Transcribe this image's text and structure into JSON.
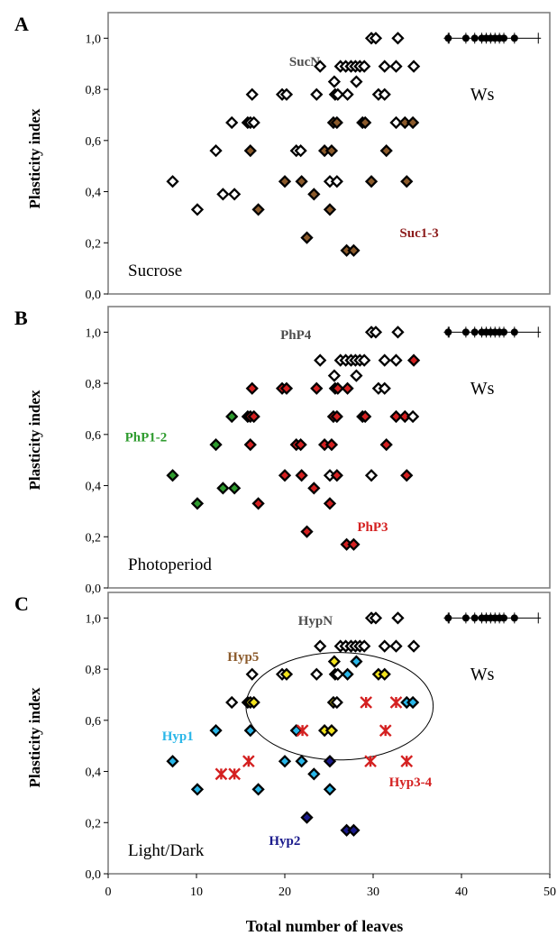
{
  "figure": {
    "xlabel": "Total number of leaves",
    "ylabel": "Plasticity index",
    "xlim": [
      0,
      50
    ],
    "ylim": [
      0,
      1.1
    ],
    "x_ticks": [
      "0",
      "10",
      "20",
      "30",
      "40",
      "50"
    ],
    "y_ticks": [
      "0,0",
      "0,2",
      "0,4",
      "0,6",
      "0,8",
      "1,0"
    ],
    "y_tick_values": [
      0,
      0.2,
      0.4,
      0.6,
      0.8,
      1.0
    ]
  },
  "colors": {
    "white": "#ffffff",
    "brown": "#8b5a2b",
    "red": "#d42020",
    "green": "#2e9b2e",
    "cyan": "#29b6e8",
    "yellow": "#f2e21d",
    "navy": "#1a1a8c",
    "black": "#000000"
  },
  "chart_data": [
    {
      "type": "scatter",
      "panel_letter": "A",
      "condition_label": "Sucrose",
      "ws_label": "Ws",
      "group_labels": [
        {
          "text": "SucN",
          "color": "#4d4d4d",
          "at": [
            20.5,
            0.91
          ]
        },
        {
          "text": "Suc1-3",
          "color": "#8b1a1a",
          "at": [
            33,
            0.24
          ]
        }
      ],
      "points": [
        {
          "x": 7.3,
          "y": 0.44,
          "c": "white"
        },
        {
          "x": 10.1,
          "y": 0.33,
          "c": "white"
        },
        {
          "x": 12.2,
          "y": 0.56,
          "c": "white"
        },
        {
          "x": 13,
          "y": 0.39,
          "c": "white"
        },
        {
          "x": 14.3,
          "y": 0.39,
          "c": "white"
        },
        {
          "x": 14,
          "y": 0.67,
          "c": "white"
        },
        {
          "x": 15.8,
          "y": 0.67,
          "c": "white"
        },
        {
          "x": 16.1,
          "y": 0.67,
          "c": "white"
        },
        {
          "x": 16.5,
          "y": 0.67,
          "c": "white"
        },
        {
          "x": 16.3,
          "y": 0.78,
          "c": "white"
        },
        {
          "x": 16.1,
          "y": 0.56,
          "c": "brown"
        },
        {
          "x": 17,
          "y": 0.33,
          "c": "brown"
        },
        {
          "x": 19.7,
          "y": 0.78,
          "c": "white"
        },
        {
          "x": 20.2,
          "y": 0.78,
          "c": "white"
        },
        {
          "x": 20,
          "y": 0.44,
          "c": "brown"
        },
        {
          "x": 21.3,
          "y": 0.56,
          "c": "white"
        },
        {
          "x": 21.8,
          "y": 0.56,
          "c": "white"
        },
        {
          "x": 21.9,
          "y": 0.44,
          "c": "brown"
        },
        {
          "x": 22.5,
          "y": 0.22,
          "c": "brown"
        },
        {
          "x": 23.3,
          "y": 0.39,
          "c": "brown"
        },
        {
          "x": 23.6,
          "y": 0.78,
          "c": "white"
        },
        {
          "x": 24,
          "y": 0.89,
          "c": "white"
        },
        {
          "x": 24.5,
          "y": 0.56,
          "c": "brown"
        },
        {
          "x": 25.1,
          "y": 0.33,
          "c": "brown"
        },
        {
          "x": 25.1,
          "y": 0.44,
          "c": "white"
        },
        {
          "x": 25.3,
          "y": 0.56,
          "c": "brown"
        },
        {
          "x": 25.5,
          "y": 0.67,
          "c": "brown"
        },
        {
          "x": 25.7,
          "y": 0.78,
          "c": "white"
        },
        {
          "x": 26,
          "y": 0.78,
          "c": "white"
        },
        {
          "x": 25.6,
          "y": 0.83,
          "c": "white"
        },
        {
          "x": 25.9,
          "y": 0.67,
          "c": "brown"
        },
        {
          "x": 26.3,
          "y": 0.89,
          "c": "white"
        },
        {
          "x": 25.9,
          "y": 0.44,
          "c": "white"
        },
        {
          "x": 26.9,
          "y": 0.89,
          "c": "white"
        },
        {
          "x": 27,
          "y": 0.17,
          "c": "brown"
        },
        {
          "x": 27.1,
          "y": 0.78,
          "c": "white"
        },
        {
          "x": 27.5,
          "y": 0.89,
          "c": "white"
        },
        {
          "x": 28,
          "y": 0.89,
          "c": "white"
        },
        {
          "x": 27.8,
          "y": 0.17,
          "c": "brown"
        },
        {
          "x": 28.1,
          "y": 0.83,
          "c": "white"
        },
        {
          "x": 28.5,
          "y": 0.89,
          "c": "white"
        },
        {
          "x": 28.8,
          "y": 0.67,
          "c": "white"
        },
        {
          "x": 29,
          "y": 0.89,
          "c": "white"
        },
        {
          "x": 29.1,
          "y": 0.67,
          "c": "brown"
        },
        {
          "x": 29.8,
          "y": 0.44,
          "c": "brown"
        },
        {
          "x": 29.8,
          "y": 1.0,
          "c": "white"
        },
        {
          "x": 30.3,
          "y": 1.0,
          "c": "white"
        },
        {
          "x": 30.6,
          "y": 0.78,
          "c": "white"
        },
        {
          "x": 31.3,
          "y": 0.78,
          "c": "white"
        },
        {
          "x": 31.5,
          "y": 0.56,
          "c": "brown"
        },
        {
          "x": 31.3,
          "y": 0.89,
          "c": "white"
        },
        {
          "x": 32.6,
          "y": 0.89,
          "c": "white"
        },
        {
          "x": 32.8,
          "y": 1.0,
          "c": "white"
        },
        {
          "x": 32.6,
          "y": 0.67,
          "c": "white"
        },
        {
          "x": 33.6,
          "y": 0.67,
          "c": "brown"
        },
        {
          "x": 33.8,
          "y": 0.44,
          "c": "brown"
        },
        {
          "x": 34.5,
          "y": 0.67,
          "c": "brown"
        },
        {
          "x": 34.6,
          "y": 0.89,
          "c": "white"
        }
      ],
      "ws_points_x": [
        38.5,
        40.5,
        41.5,
        42.3,
        42.8,
        43.3,
        43.8,
        44.3,
        44.8,
        46
      ],
      "ws_points_y": 1.0,
      "ws_whisker": [
        38,
        49
      ]
    },
    {
      "type": "scatter",
      "panel_letter": "B",
      "condition_label": "Photoperiod",
      "ws_label": "Ws",
      "group_labels": [
        {
          "text": "PhP4",
          "color": "#4d4d4d",
          "at": [
            19.5,
            0.99
          ]
        },
        {
          "text": "PhP1-2",
          "color": "#2e9b2e",
          "at": [
            1.9,
            0.59
          ]
        },
        {
          "text": "PhP3",
          "color": "#d42020",
          "at": [
            28.2,
            0.24
          ]
        }
      ],
      "points": [
        {
          "x": 7.3,
          "y": 0.44,
          "c": "green"
        },
        {
          "x": 10.1,
          "y": 0.33,
          "c": "green"
        },
        {
          "x": 12.2,
          "y": 0.56,
          "c": "green"
        },
        {
          "x": 13,
          "y": 0.39,
          "c": "green"
        },
        {
          "x": 14.3,
          "y": 0.39,
          "c": "green"
        },
        {
          "x": 14,
          "y": 0.67,
          "c": "green"
        },
        {
          "x": 15.8,
          "y": 0.67,
          "c": "red"
        },
        {
          "x": 16.1,
          "y": 0.67,
          "c": "red"
        },
        {
          "x": 16.5,
          "y": 0.67,
          "c": "red"
        },
        {
          "x": 16.3,
          "y": 0.78,
          "c": "red"
        },
        {
          "x": 16.1,
          "y": 0.56,
          "c": "red"
        },
        {
          "x": 17,
          "y": 0.33,
          "c": "red"
        },
        {
          "x": 19.7,
          "y": 0.78,
          "c": "red"
        },
        {
          "x": 20.2,
          "y": 0.78,
          "c": "red"
        },
        {
          "x": 20,
          "y": 0.44,
          "c": "red"
        },
        {
          "x": 21.3,
          "y": 0.56,
          "c": "red"
        },
        {
          "x": 21.8,
          "y": 0.56,
          "c": "red"
        },
        {
          "x": 21.9,
          "y": 0.44,
          "c": "red"
        },
        {
          "x": 22.5,
          "y": 0.22,
          "c": "red"
        },
        {
          "x": 23.3,
          "y": 0.39,
          "c": "red"
        },
        {
          "x": 23.6,
          "y": 0.78,
          "c": "red"
        },
        {
          "x": 24,
          "y": 0.89,
          "c": "white"
        },
        {
          "x": 24.5,
          "y": 0.56,
          "c": "red"
        },
        {
          "x": 25.1,
          "y": 0.33,
          "c": "red"
        },
        {
          "x": 25.1,
          "y": 0.44,
          "c": "white"
        },
        {
          "x": 25.3,
          "y": 0.56,
          "c": "red"
        },
        {
          "x": 25.5,
          "y": 0.67,
          "c": "red"
        },
        {
          "x": 25.7,
          "y": 0.78,
          "c": "red"
        },
        {
          "x": 26,
          "y": 0.78,
          "c": "red"
        },
        {
          "x": 25.6,
          "y": 0.83,
          "c": "white"
        },
        {
          "x": 25.9,
          "y": 0.67,
          "c": "red"
        },
        {
          "x": 26.3,
          "y": 0.89,
          "c": "white"
        },
        {
          "x": 25.9,
          "y": 0.44,
          "c": "red"
        },
        {
          "x": 26.9,
          "y": 0.89,
          "c": "white"
        },
        {
          "x": 27,
          "y": 0.17,
          "c": "red"
        },
        {
          "x": 27.1,
          "y": 0.78,
          "c": "red"
        },
        {
          "x": 27.5,
          "y": 0.89,
          "c": "white"
        },
        {
          "x": 28,
          "y": 0.89,
          "c": "white"
        },
        {
          "x": 27.8,
          "y": 0.17,
          "c": "red"
        },
        {
          "x": 28.1,
          "y": 0.83,
          "c": "white"
        },
        {
          "x": 28.5,
          "y": 0.89,
          "c": "white"
        },
        {
          "x": 28.8,
          "y": 0.67,
          "c": "red"
        },
        {
          "x": 29,
          "y": 0.89,
          "c": "white"
        },
        {
          "x": 29.1,
          "y": 0.67,
          "c": "red"
        },
        {
          "x": 29.8,
          "y": 0.44,
          "c": "white"
        },
        {
          "x": 29.8,
          "y": 1.0,
          "c": "white"
        },
        {
          "x": 30.3,
          "y": 1.0,
          "c": "white"
        },
        {
          "x": 30.6,
          "y": 0.78,
          "c": "white"
        },
        {
          "x": 31.3,
          "y": 0.78,
          "c": "white"
        },
        {
          "x": 31.5,
          "y": 0.56,
          "c": "red"
        },
        {
          "x": 31.3,
          "y": 0.89,
          "c": "white"
        },
        {
          "x": 32.6,
          "y": 0.89,
          "c": "white"
        },
        {
          "x": 32.8,
          "y": 1.0,
          "c": "white"
        },
        {
          "x": 32.6,
          "y": 0.67,
          "c": "red"
        },
        {
          "x": 33.6,
          "y": 0.67,
          "c": "red"
        },
        {
          "x": 33.8,
          "y": 0.44,
          "c": "red"
        },
        {
          "x": 34.5,
          "y": 0.67,
          "c": "white"
        },
        {
          "x": 34.6,
          "y": 0.89,
          "c": "red"
        }
      ],
      "ws_points_x": [
        38.5,
        40.5,
        41.5,
        42.3,
        42.8,
        43.3,
        43.8,
        44.3,
        44.8,
        46
      ],
      "ws_points_y": 1.0,
      "ws_whisker": [
        38,
        49
      ]
    },
    {
      "type": "scatter",
      "panel_letter": "C",
      "condition_label": "Light/Dark",
      "ws_label": "Ws",
      "group_labels": [
        {
          "text": "HypN",
          "color": "#4d4d4d",
          "at": [
            21.5,
            0.99
          ]
        },
        {
          "text": "Hyp5",
          "color": "#8b5a2b",
          "at": [
            13.5,
            0.85
          ]
        },
        {
          "text": "Hyp1",
          "color": "#29b6e8",
          "at": [
            6.1,
            0.54
          ]
        },
        {
          "text": "Hyp3-4",
          "color": "#d42020",
          "at": [
            31.8,
            0.36
          ]
        },
        {
          "text": "Hyp2",
          "color": "#1a1a8c",
          "at": [
            18.2,
            0.13
          ]
        }
      ],
      "points": [
        {
          "x": 7.3,
          "y": 0.44,
          "c": "cyan"
        },
        {
          "x": 10.1,
          "y": 0.33,
          "c": "cyan"
        },
        {
          "x": 12.2,
          "y": 0.56,
          "c": "cyan"
        },
        {
          "x": 14,
          "y": 0.67,
          "c": "white"
        },
        {
          "x": 15.8,
          "y": 0.67,
          "c": "yellow"
        },
        {
          "x": 16.1,
          "y": 0.67,
          "c": "yellow"
        },
        {
          "x": 16.5,
          "y": 0.67,
          "c": "yellow"
        },
        {
          "x": 16.3,
          "y": 0.78,
          "c": "white"
        },
        {
          "x": 16.1,
          "y": 0.56,
          "c": "cyan"
        },
        {
          "x": 17,
          "y": 0.33,
          "c": "cyan"
        },
        {
          "x": 19.7,
          "y": 0.78,
          "c": "white"
        },
        {
          "x": 20.2,
          "y": 0.78,
          "c": "yellow"
        },
        {
          "x": 20,
          "y": 0.44,
          "c": "cyan"
        },
        {
          "x": 21.3,
          "y": 0.56,
          "c": "cyan"
        },
        {
          "x": 21.9,
          "y": 0.44,
          "c": "cyan"
        },
        {
          "x": 22.5,
          "y": 0.22,
          "c": "navy"
        },
        {
          "x": 23.3,
          "y": 0.39,
          "c": "cyan"
        },
        {
          "x": 23.6,
          "y": 0.78,
          "c": "white"
        },
        {
          "x": 24,
          "y": 0.89,
          "c": "white"
        },
        {
          "x": 24.5,
          "y": 0.56,
          "c": "yellow"
        },
        {
          "x": 25.1,
          "y": 0.33,
          "c": "cyan"
        },
        {
          "x": 25.1,
          "y": 0.44,
          "c": "navy"
        },
        {
          "x": 25.3,
          "y": 0.56,
          "c": "yellow"
        },
        {
          "x": 25.5,
          "y": 0.67,
          "c": "yellow"
        },
        {
          "x": 25.7,
          "y": 0.78,
          "c": "cyan"
        },
        {
          "x": 26,
          "y": 0.78,
          "c": "white"
        },
        {
          "x": 25.6,
          "y": 0.83,
          "c": "yellow"
        },
        {
          "x": 25.9,
          "y": 0.67,
          "c": "white"
        },
        {
          "x": 26.3,
          "y": 0.89,
          "c": "white"
        },
        {
          "x": 26.9,
          "y": 0.89,
          "c": "white"
        },
        {
          "x": 27,
          "y": 0.17,
          "c": "navy"
        },
        {
          "x": 27.1,
          "y": 0.78,
          "c": "cyan"
        },
        {
          "x": 27.5,
          "y": 0.89,
          "c": "white"
        },
        {
          "x": 28,
          "y": 0.89,
          "c": "white"
        },
        {
          "x": 27.8,
          "y": 0.17,
          "c": "navy"
        },
        {
          "x": 28.1,
          "y": 0.83,
          "c": "cyan"
        },
        {
          "x": 28.5,
          "y": 0.89,
          "c": "white"
        },
        {
          "x": 29,
          "y": 0.89,
          "c": "white"
        },
        {
          "x": 29.8,
          "y": 1.0,
          "c": "white"
        },
        {
          "x": 30.3,
          "y": 1.0,
          "c": "white"
        },
        {
          "x": 30.6,
          "y": 0.78,
          "c": "yellow"
        },
        {
          "x": 31.3,
          "y": 0.78,
          "c": "yellow"
        },
        {
          "x": 31.3,
          "y": 0.89,
          "c": "white"
        },
        {
          "x": 32.6,
          "y": 0.89,
          "c": "white"
        },
        {
          "x": 32.8,
          "y": 1.0,
          "c": "white"
        },
        {
          "x": 33.8,
          "y": 0.67,
          "c": "cyan"
        },
        {
          "x": 34.5,
          "y": 0.67,
          "c": "cyan"
        },
        {
          "x": 34.6,
          "y": 0.89,
          "c": "white"
        }
      ],
      "cross_points": [
        {
          "x": 12.8,
          "y": 0.39
        },
        {
          "x": 14.3,
          "y": 0.39
        },
        {
          "x": 15.9,
          "y": 0.44
        },
        {
          "x": 22,
          "y": 0.56
        },
        {
          "x": 29.2,
          "y": 0.67
        },
        {
          "x": 29.7,
          "y": 0.44
        },
        {
          "x": 31.4,
          "y": 0.56
        },
        {
          "x": 32.6,
          "y": 0.67
        },
        {
          "x": 33.8,
          "y": 0.44
        }
      ],
      "ellipse": {
        "cx": 26.2,
        "cy": 0.655,
        "rx": 10.6,
        "ry": 0.21
      },
      "ws_points_x": [
        38.5,
        40.5,
        41.5,
        42.3,
        42.8,
        43.3,
        43.8,
        44.3,
        44.8,
        46
      ],
      "ws_points_y": 1.0,
      "ws_whisker": [
        38,
        49
      ]
    }
  ]
}
